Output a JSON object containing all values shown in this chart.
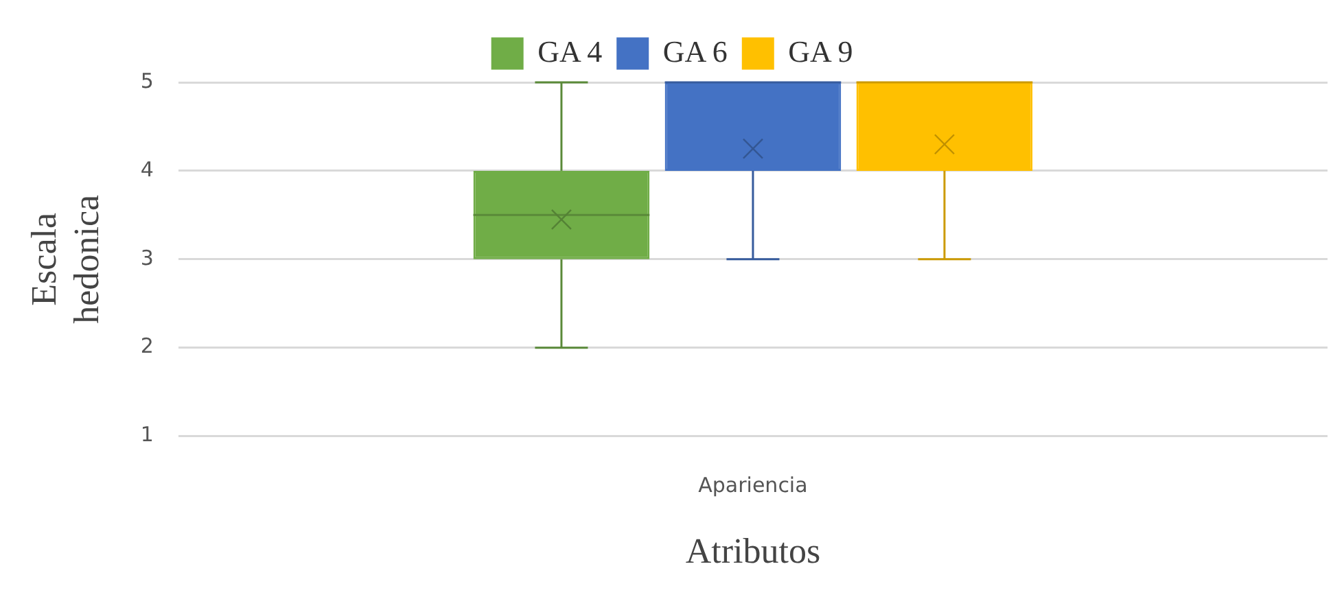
{
  "chart_data": {
    "type": "box",
    "categories": [
      "Apariencia"
    ],
    "xlabel": "Atributos",
    "ylabel": "Escala hedonica",
    "ylim": [
      1,
      5
    ],
    "yticks": [
      1,
      2,
      3,
      4,
      5
    ],
    "grid": "y",
    "legend": "top",
    "series": [
      {
        "name": "GA 4",
        "color": "#70ad47",
        "boxes": [
          {
            "low": 2,
            "q1": 3,
            "median": 3.5,
            "q3": 4,
            "high": 5,
            "mean": 3.45
          }
        ]
      },
      {
        "name": "GA 6",
        "color": "#4472c4",
        "boxes": [
          {
            "low": 3,
            "q1": 4,
            "median": 5,
            "q3": 5,
            "high": 5,
            "mean": 4.25
          }
        ]
      },
      {
        "name": "GA 9",
        "color": "#ffc000",
        "boxes": [
          {
            "low": 3,
            "q1": 4,
            "median": 5,
            "q3": 5,
            "high": 5,
            "mean": 4.3
          }
        ]
      }
    ]
  }
}
